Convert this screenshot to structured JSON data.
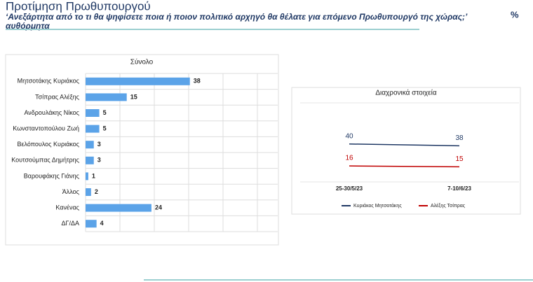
{
  "header": {
    "title": "Προτίμηση Πρωθυπουργού",
    "subtitle": "‘Ανεξάρτητα από το τι θα ψηφίσετε ποια ή ποιον πολιτικό αρχηγό θα θέλατε για επόμενο Πρωθυπουργό της χώρας;’ αυθόρμητα",
    "unit": "%"
  },
  "chart_data": [
    {
      "type": "hbar",
      "title": "Σύνολο",
      "categories": [
        "Μητσοτάκης Κυριάκος",
        "Τσίπρας Αλέξης",
        "Ανδρουλάκης Νίκος",
        "Κωνσταντοπούλου Ζωή",
        "Βελόπουλος Κυριάκος",
        "Κουτσούμπας Δημήτρης",
        "Βαρουφάκης Γιάνης",
        "Άλλος",
        "Κανένας",
        "ΔΓ/ΔΑ"
      ],
      "values": [
        38,
        15,
        5,
        5,
        3,
        3,
        1,
        2,
        24,
        4
      ],
      "color": "#5ba3e8",
      "xlim": [
        0,
        70
      ],
      "grid": true
    },
    {
      "type": "line",
      "title": "Διαχρονικά στοιχεία",
      "categories": [
        "25-30/5/23",
        "7-10/6/23"
      ],
      "series": [
        {
          "name": "Κυριάκος Μητσοτάκης",
          "color": "#1f3864",
          "values": [
            40,
            38
          ]
        },
        {
          "name": "Αλέξης Τσίπρας",
          "color": "#c00000",
          "values": [
            16,
            15
          ]
        }
      ],
      "ylim": [
        0,
        85
      ],
      "legend": "bottom"
    }
  ]
}
